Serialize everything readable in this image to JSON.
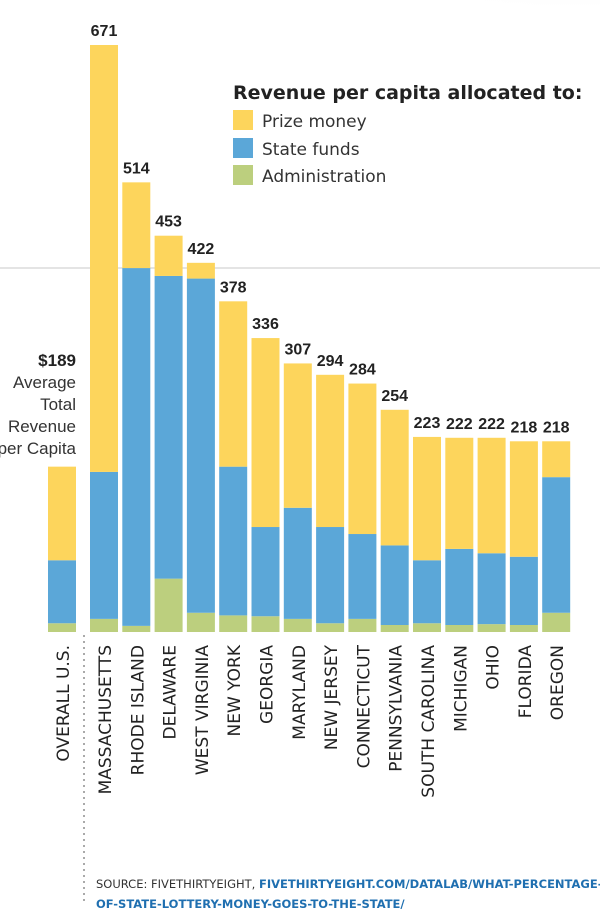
{
  "chart_data": {
    "type": "bar",
    "stacked": true,
    "title": "Revenue per capita allocated to:",
    "categories": [
      "OVERALL U.S.",
      "MASSACHUSETTS",
      "RHODE ISLAND",
      "DELAWARE",
      "WEST VIRGINIA",
      "NEW YORK",
      "GEORGIA",
      "MARYLAND",
      "NEW JERSEY",
      "CONNECTICUT",
      "PENNSYLVANIA",
      "SOUTH CAROLINA",
      "MICHIGAN",
      "OHIO",
      "FLORIDA",
      "OREGON"
    ],
    "totals": [
      189,
      671,
      514,
      453,
      422,
      378,
      336,
      307,
      294,
      284,
      254,
      223,
      222,
      222,
      218,
      218
    ],
    "total_labels": [
      "$189",
      "671",
      "514",
      "453",
      "422",
      "378",
      "336",
      "307",
      "294",
      "284",
      "254",
      "223",
      "222",
      "222",
      "218",
      "218"
    ],
    "series": [
      {
        "name": "Administration",
        "color": "#BCCF7E",
        "values": [
          10,
          15,
          7,
          61,
          22,
          19,
          18,
          15,
          10,
          15,
          8,
          10,
          8,
          9,
          8,
          22
        ]
      },
      {
        "name": "State funds",
        "color": "#5BA7D8",
        "values": [
          72,
          168,
          409,
          346,
          382,
          170,
          102,
          127,
          110,
          97,
          91,
          72,
          87,
          81,
          78,
          155
        ]
      },
      {
        "name": "Prize money",
        "color": "#FDD55C",
        "values": [
          107,
          488,
          98,
          46,
          18,
          189,
          216,
          165,
          174,
          172,
          155,
          141,
          127,
          132,
          132,
          41
        ]
      }
    ],
    "legend_order": [
      "Prize money",
      "State funds",
      "Administration"
    ],
    "ylim": [
      0,
      671
    ],
    "grid": false,
    "legend_position": "top-right",
    "annotation": [
      "Average",
      "Total",
      "Revenue",
      "per Capita"
    ]
  },
  "source": {
    "prefix": "SOURCE: FIVETHIRTYEIGHT, ",
    "link_line1": "FIVETHIRTYEIGHT.COM/DATALAB/WHAT-PERCENTAGE-",
    "link_line2": "OF-STATE-LOTTERY-MONEY-GOES-TO-THE-STATE/"
  }
}
